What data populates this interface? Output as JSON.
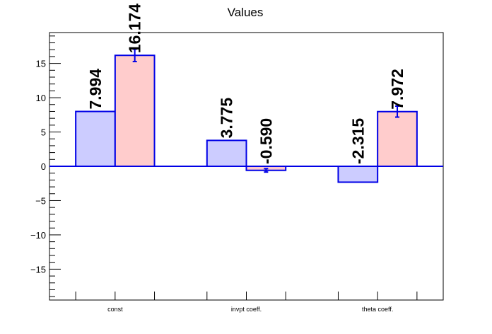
{
  "chart_data": {
    "type": "bar",
    "title": "Values",
    "categories": [
      "const",
      "invpt coeff.",
      "theta coeff."
    ],
    "series": [
      {
        "values": [
          7.994,
          3.775,
          -2.315
        ],
        "value_labels": [
          "7.994",
          "3.775",
          "-2.315"
        ],
        "errors": [
          0,
          0,
          0
        ],
        "fill": "#ccccff"
      },
      {
        "values": [
          16.174,
          -0.59,
          7.972
        ],
        "value_labels": [
          "16.174",
          "-0.590",
          "7.972"
        ],
        "errors": [
          0.9,
          0.25,
          0.8
        ],
        "fill": "#ffcccc"
      }
    ],
    "ylim": [
      -19.5,
      19.5
    ],
    "yticks": [
      -15,
      -10,
      -5,
      0,
      5,
      10,
      15
    ],
    "ytick_labels": [
      "−15",
      "−10",
      "−5",
      "0",
      "5",
      "10",
      "15"
    ],
    "line_color": "#0000e6",
    "grid": false
  }
}
